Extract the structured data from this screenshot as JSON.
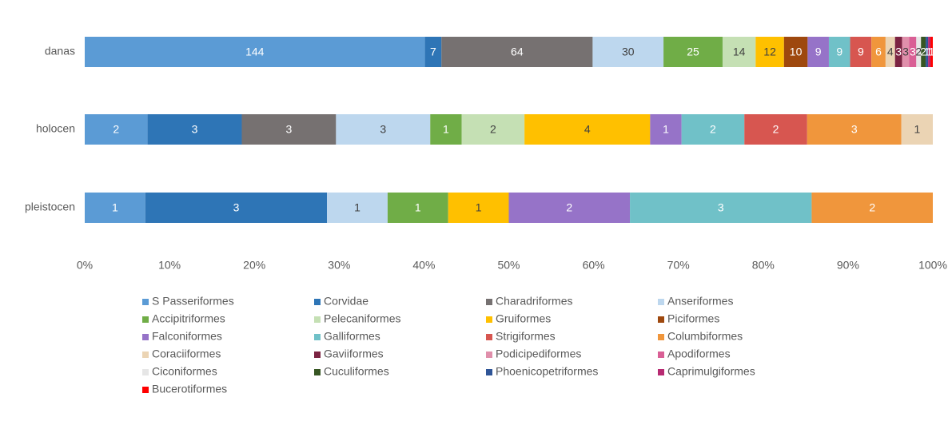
{
  "chart_data": {
    "type": "stacked_percent_bar",
    "categories": [
      "danas",
      "holocen",
      "pleistocen"
    ],
    "xlim": [
      0,
      100
    ],
    "xticks": [
      {
        "value": 0,
        "label": "0%"
      },
      {
        "value": 10,
        "label": "10%"
      },
      {
        "value": 20,
        "label": "20%"
      },
      {
        "value": 30,
        "label": "30%"
      },
      {
        "value": 40,
        "label": "40%"
      },
      {
        "value": 50,
        "label": "50%"
      },
      {
        "value": 60,
        "label": "60%"
      },
      {
        "value": 70,
        "label": "70%"
      },
      {
        "value": 80,
        "label": "80%"
      },
      {
        "value": 90,
        "label": "90%"
      },
      {
        "value": 100,
        "label": "100%"
      }
    ],
    "series": [
      {
        "name": "S Passeriformes",
        "color": "#5b9bd5",
        "values": [
          144,
          2,
          1
        ]
      },
      {
        "name": "Corvidae",
        "color": "#2e75b6",
        "values": [
          7,
          3,
          3
        ]
      },
      {
        "name": "Charadriformes",
        "color": "#767171",
        "values": [
          64,
          3,
          null
        ]
      },
      {
        "name": "Anseriformes",
        "color": "#bdd7ee",
        "values": [
          30,
          3,
          1
        ]
      },
      {
        "name": "Accipitriformes",
        "color": "#70ad47",
        "values": [
          25,
          1,
          1
        ]
      },
      {
        "name": "Pelecaniformes",
        "color": "#c5e0b4",
        "values": [
          14,
          2,
          null
        ]
      },
      {
        "name": "Gruiformes",
        "color": "#ffc000",
        "values": [
          12,
          4,
          1
        ]
      },
      {
        "name": "Piciformes",
        "color": "#9e480e",
        "values": [
          10,
          null,
          null
        ]
      },
      {
        "name": "Falconiformes",
        "color": "#9673c8",
        "values": [
          9,
          1,
          2
        ]
      },
      {
        "name": "Galliformes",
        "color": "#70c1c8",
        "values": [
          9,
          2,
          3
        ]
      },
      {
        "name": "Strigiformes",
        "color": "#d75650",
        "values": [
          9,
          2,
          null
        ]
      },
      {
        "name": "Columbiformes",
        "color": "#f0963c",
        "values": [
          6,
          3,
          2
        ]
      },
      {
        "name": "Coraciiformes",
        "color": "#ebd4b4",
        "values": [
          4,
          1,
          null
        ]
      },
      {
        "name": "Gaviiformes",
        "color": "#7b2342",
        "values": [
          3,
          null,
          null
        ]
      },
      {
        "name": "Podicipediformes",
        "color": "#e08fab",
        "values": [
          3,
          null,
          null
        ]
      },
      {
        "name": "Apodiformes",
        "color": "#d95f95",
        "values": [
          3,
          null,
          null
        ]
      },
      {
        "name": "Ciconiformes",
        "color": "#e6e6e6",
        "values": [
          2,
          null,
          null
        ]
      },
      {
        "name": "Cuculiformes",
        "color": "#375623",
        "values": [
          2,
          null,
          null
        ]
      },
      {
        "name": "Phoenicopetriformes",
        "color": "#2f5597",
        "values": [
          1,
          null,
          null
        ]
      },
      {
        "name": "Caprimulgiformes",
        "color": "#b72a72",
        "values": [
          1,
          null,
          null
        ]
      },
      {
        "name": "Bucerotiformes",
        "color": "#ff0000",
        "values": [
          1,
          null,
          null
        ]
      }
    ]
  }
}
